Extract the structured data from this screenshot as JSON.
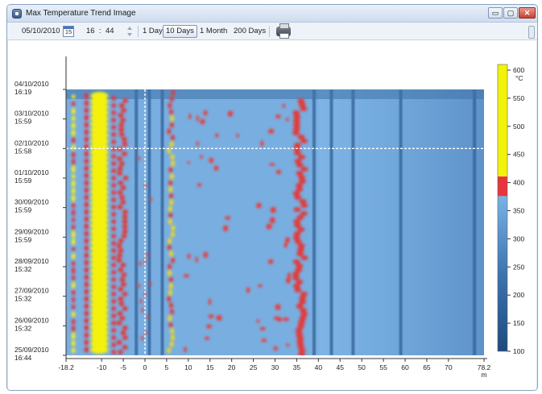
{
  "window": {
    "title": "Max Temperature Trend Image",
    "buttons": {
      "minimize": "▭",
      "maximize": "▢",
      "close": "✕"
    }
  },
  "toolbar": {
    "date": "05/10/2010",
    "calendar_day": "15",
    "time_hour": "16",
    "time_sep": ":",
    "time_minute": "44",
    "ranges": [
      "1 Day",
      "10 Days",
      "1 Month",
      "200 Days"
    ],
    "active_range": "10 Days",
    "print_icon": "printer-icon"
  },
  "chart_data": {
    "type": "heatmap",
    "title": "",
    "y_labels": [
      [
        "04/10/2010",
        "16:19"
      ],
      [
        "03/10/2010",
        "15:59"
      ],
      [
        "02/10/2010",
        "15:58"
      ],
      [
        "01/10/2010",
        "15:59"
      ],
      [
        "30/09/2010",
        "15:59"
      ],
      [
        "29/09/2010",
        "15:59"
      ],
      [
        "28/09/2010",
        "15:32"
      ],
      [
        "27/09/2010",
        "15:32"
      ],
      [
        "26/09/2010",
        "15:32"
      ],
      [
        "25/09/2010",
        "16:44"
      ]
    ],
    "x_ticks": [
      -18.2,
      -10,
      -5,
      0,
      5,
      10,
      15,
      20,
      25,
      30,
      35,
      40,
      45,
      50,
      55,
      60,
      65,
      70,
      78.2
    ],
    "x_tick_labels": [
      "-18.2",
      "-10",
      "-5",
      "0",
      "5",
      "10",
      "15",
      "20",
      "25",
      "30",
      "35",
      "40",
      "45",
      "50",
      "55",
      "60",
      "65",
      "70",
      "78.2"
    ],
    "x_unit": "m",
    "xlim": [
      -18.2,
      78.2
    ],
    "colorbar": {
      "unit": "°C",
      "ticks": [
        100,
        150,
        200,
        250,
        300,
        350,
        400,
        450,
        500,
        550,
        600
      ],
      "tick_labels": [
        "100",
        "150",
        "200",
        "250",
        "300",
        "350",
        "400",
        "450",
        "500",
        "550",
        "600"
      ],
      "range": [
        100,
        610
      ],
      "colors": [
        "#1f4f86",
        "#3f79b6",
        "#5c97d1",
        "#74b0e6",
        "#e8343c",
        "#ef2b2b",
        "#f3f20a",
        "#ffff00"
      ]
    },
    "cursor": {
      "x": 0,
      "time": "02/10/2010 15:58"
    },
    "hot_columns_m": [
      -16.5,
      -10.5,
      -5.5,
      6,
      36
    ],
    "cold_columns_m": [
      -2,
      1,
      4,
      39,
      43,
      48,
      59,
      76
    ]
  }
}
